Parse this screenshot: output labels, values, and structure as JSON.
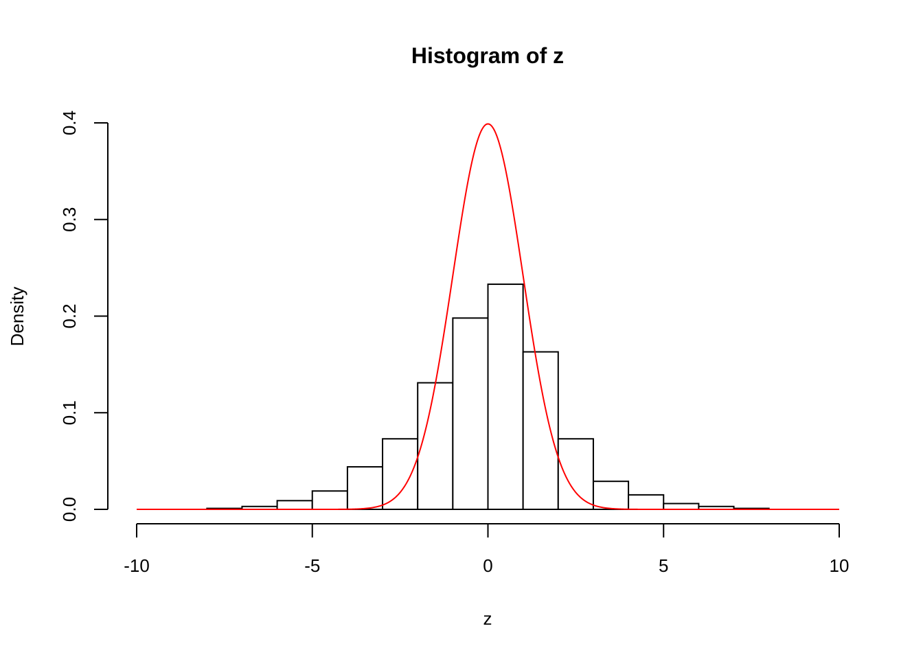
{
  "chart_data": {
    "type": "bar",
    "title": "Histogram of z",
    "xlabel": "z",
    "ylabel": "Density",
    "xlim": [
      -10,
      10
    ],
    "ylim": [
      0,
      0.4
    ],
    "x_ticks": [
      -10,
      -5,
      0,
      5,
      10
    ],
    "x_tick_labels": [
      "-10",
      "-5",
      "0",
      "5",
      "10"
    ],
    "y_ticks": [
      0,
      0.1,
      0.2,
      0.3,
      0.4
    ],
    "y_tick_labels": [
      "0.0",
      "0.1",
      "0.2",
      "0.3",
      "0.4"
    ],
    "grid": false,
    "bins": [
      {
        "x0": -10,
        "x1": -9,
        "density": 0.0
      },
      {
        "x0": -9,
        "x1": -8,
        "density": 0.0
      },
      {
        "x0": -8,
        "x1": -7,
        "density": 0.001
      },
      {
        "x0": -7,
        "x1": -6,
        "density": 0.003
      },
      {
        "x0": -6,
        "x1": -5,
        "density": 0.009
      },
      {
        "x0": -5,
        "x1": -4,
        "density": 0.019
      },
      {
        "x0": -4,
        "x1": -3,
        "density": 0.044
      },
      {
        "x0": -3,
        "x1": -2,
        "density": 0.073
      },
      {
        "x0": -2,
        "x1": -1,
        "density": 0.131
      },
      {
        "x0": -1,
        "x1": 0,
        "density": 0.198
      },
      {
        "x0": 0,
        "x1": 1,
        "density": 0.233
      },
      {
        "x0": 1,
        "x1": 2,
        "density": 0.163
      },
      {
        "x0": 2,
        "x1": 3,
        "density": 0.073
      },
      {
        "x0": 3,
        "x1": 4,
        "density": 0.029
      },
      {
        "x0": 4,
        "x1": 5,
        "density": 0.015
      },
      {
        "x0": 5,
        "x1": 6,
        "density": 0.006
      },
      {
        "x0": 6,
        "x1": 7,
        "density": 0.003
      },
      {
        "x0": 7,
        "x1": 8,
        "density": 0.001
      },
      {
        "x0": 8,
        "x1": 9,
        "density": 0.0
      },
      {
        "x0": 9,
        "x1": 10,
        "density": 0.0
      }
    ],
    "overlay_curve": {
      "type": "line",
      "description": "standard normal density",
      "mean": 0,
      "sd": 1,
      "x_range": [
        -10,
        10
      ],
      "color": "#ff0000"
    },
    "bar_fill": "#ffffff",
    "bar_stroke": "#000000"
  }
}
